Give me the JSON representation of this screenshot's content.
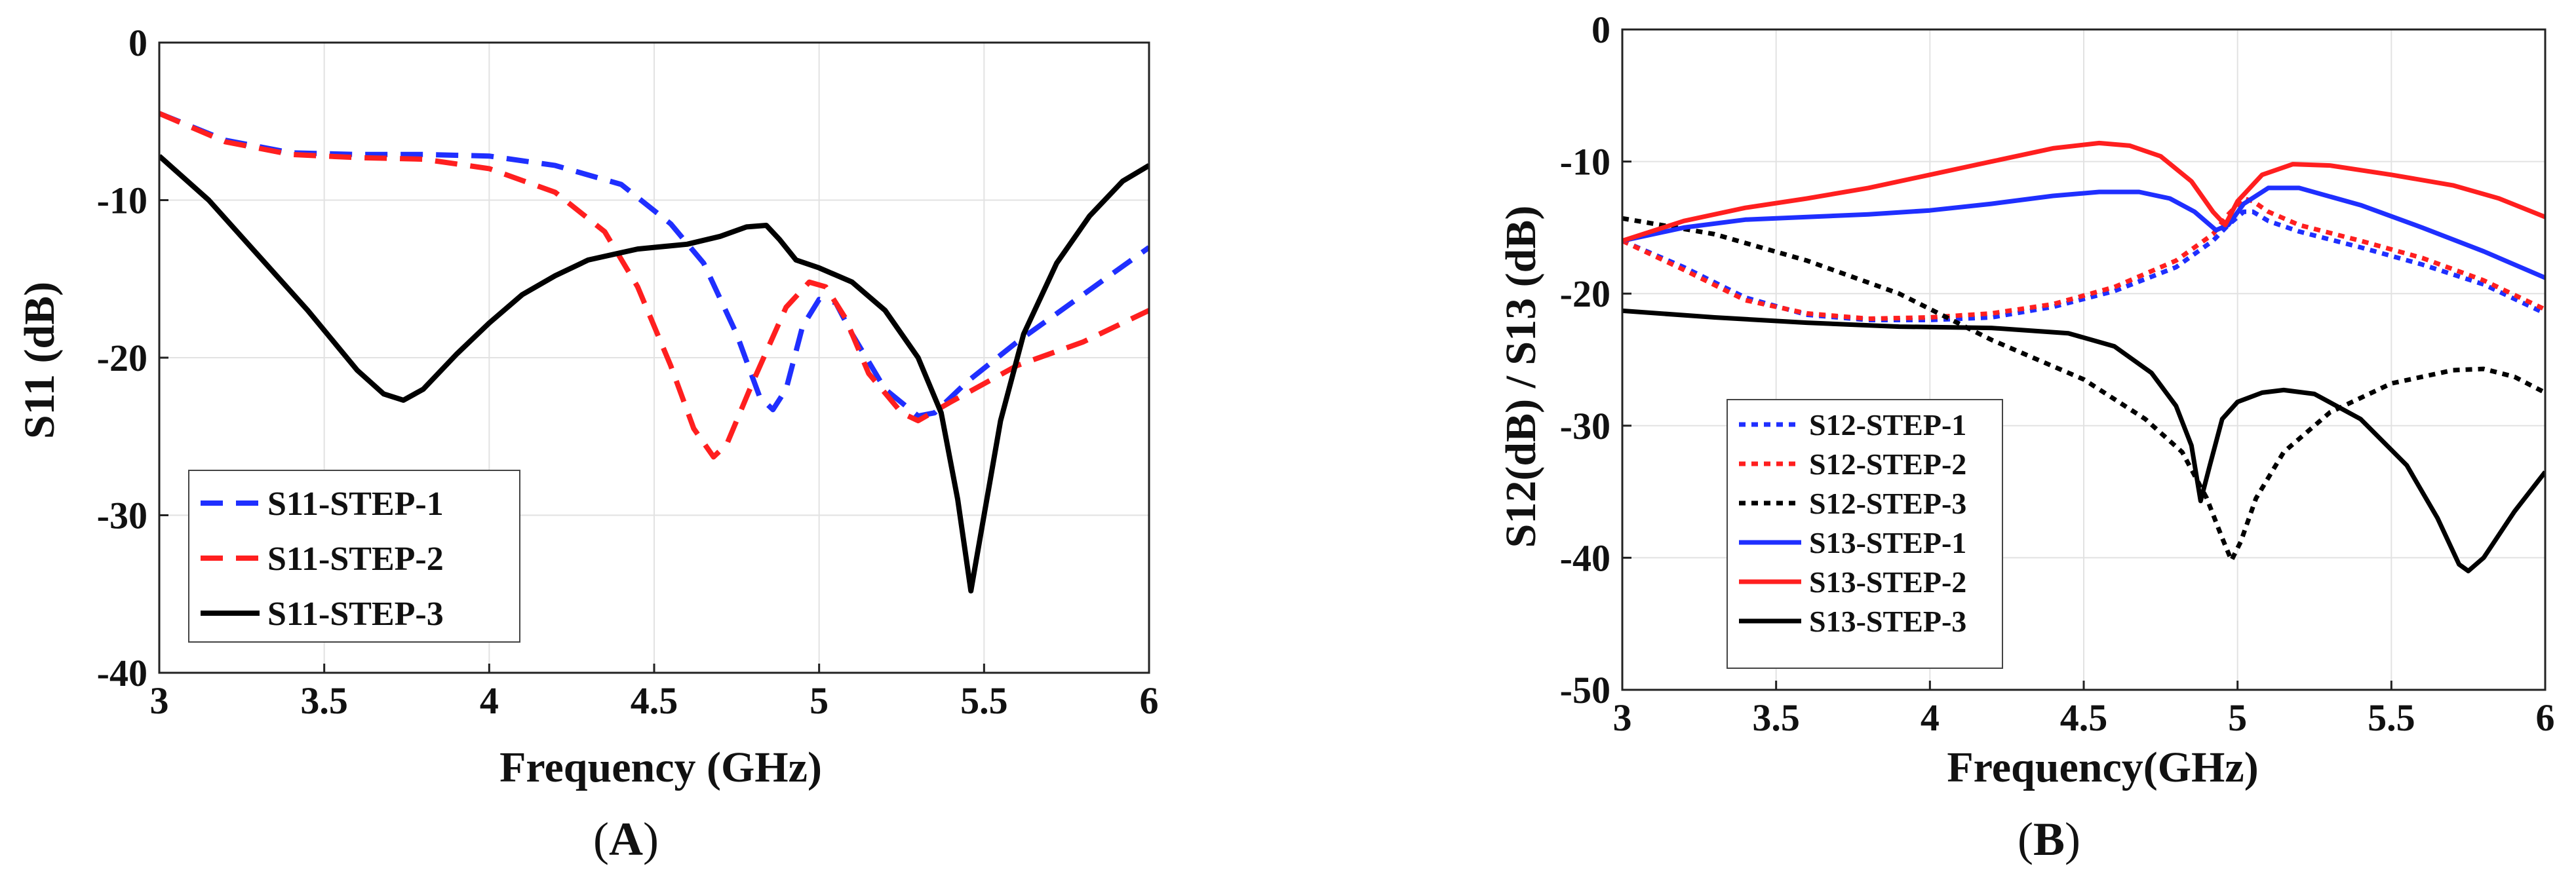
{
  "chart_data": [
    {
      "type": "line",
      "panel_label": "A",
      "xlabel": "Frequency (GHz)",
      "ylabel": "S11 (dB)",
      "xlim": [
        3,
        6
      ],
      "ylim": [
        -40,
        0
      ],
      "xticks": [
        3,
        3.5,
        4,
        4.5,
        5,
        5.5,
        6
      ],
      "xtick_labels": [
        "3",
        "3.5",
        "4",
        "4.5",
        "5",
        "5.5",
        "6"
      ],
      "yticks": [
        0,
        -10,
        -20,
        -30,
        -40
      ],
      "ytick_labels": [
        "0",
        "-10",
        "-20",
        "-30",
        "-40"
      ],
      "grid": true,
      "legend_position": "bottom-left",
      "series": [
        {
          "name": "S11-STEP-1",
          "color": "#1f2fff",
          "style": "dashed",
          "points": [
            [
              3,
              -4.5
            ],
            [
              3.2,
              -6.2
            ],
            [
              3.4,
              -7.0
            ],
            [
              3.6,
              -7.1
            ],
            [
              3.8,
              -7.1
            ],
            [
              4.0,
              -7.2
            ],
            [
              4.2,
              -7.8
            ],
            [
              4.4,
              -9.0
            ],
            [
              4.55,
              -11.5
            ],
            [
              4.65,
              -14.0
            ],
            [
              4.75,
              -18.5
            ],
            [
              4.82,
              -22.5
            ],
            [
              4.86,
              -23.3
            ],
            [
              4.9,
              -22.0
            ],
            [
              4.95,
              -18.0
            ],
            [
              5.0,
              -16.3
            ],
            [
              5.05,
              -16.5
            ],
            [
              5.1,
              -18.5
            ],
            [
              5.2,
              -22.0
            ],
            [
              5.3,
              -23.7
            ],
            [
              5.35,
              -23.5
            ],
            [
              5.45,
              -21.5
            ],
            [
              5.6,
              -19.0
            ],
            [
              5.8,
              -16.0
            ],
            [
              6.0,
              -13.0
            ]
          ]
        },
        {
          "name": "S11-STEP-2",
          "color": "#ff1f1f",
          "style": "dashed",
          "points": [
            [
              3,
              -4.5
            ],
            [
              3.2,
              -6.3
            ],
            [
              3.4,
              -7.1
            ],
            [
              3.6,
              -7.3
            ],
            [
              3.8,
              -7.4
            ],
            [
              4.0,
              -8.0
            ],
            [
              4.2,
              -9.5
            ],
            [
              4.35,
              -12.0
            ],
            [
              4.45,
              -15.5
            ],
            [
              4.55,
              -20.5
            ],
            [
              4.62,
              -24.5
            ],
            [
              4.68,
              -26.3
            ],
            [
              4.72,
              -25.5
            ],
            [
              4.8,
              -21.5
            ],
            [
              4.9,
              -16.8
            ],
            [
              4.97,
              -15.2
            ],
            [
              5.02,
              -15.5
            ],
            [
              5.08,
              -17.5
            ],
            [
              5.15,
              -21.0
            ],
            [
              5.25,
              -23.5
            ],
            [
              5.3,
              -24.0
            ],
            [
              5.4,
              -22.8
            ],
            [
              5.6,
              -20.5
            ],
            [
              5.8,
              -19.0
            ],
            [
              6.0,
              -17.0
            ]
          ]
        },
        {
          "name": "S11-STEP-3",
          "color": "#000000",
          "style": "solid",
          "points": [
            [
              3,
              -7.2
            ],
            [
              3.15,
              -10.0
            ],
            [
              3.3,
              -13.5
            ],
            [
              3.45,
              -17.0
            ],
            [
              3.6,
              -20.8
            ],
            [
              3.68,
              -22.3
            ],
            [
              3.74,
              -22.7
            ],
            [
              3.8,
              -22.0
            ],
            [
              3.9,
              -19.8
            ],
            [
              4.0,
              -17.8
            ],
            [
              4.1,
              -16.0
            ],
            [
              4.2,
              -14.8
            ],
            [
              4.3,
              -13.8
            ],
            [
              4.45,
              -13.1
            ],
            [
              4.6,
              -12.8
            ],
            [
              4.7,
              -12.3
            ],
            [
              4.78,
              -11.7
            ],
            [
              4.84,
              -11.6
            ],
            [
              4.88,
              -12.5
            ],
            [
              4.93,
              -13.8
            ],
            [
              5.0,
              -14.3
            ],
            [
              5.1,
              -15.2
            ],
            [
              5.2,
              -17.0
            ],
            [
              5.3,
              -20.0
            ],
            [
              5.37,
              -23.5
            ],
            [
              5.42,
              -29.0
            ],
            [
              5.46,
              -34.8
            ],
            [
              5.5,
              -30.0
            ],
            [
              5.55,
              -24.0
            ],
            [
              5.62,
              -18.5
            ],
            [
              5.72,
              -14.0
            ],
            [
              5.82,
              -11.0
            ],
            [
              5.92,
              -8.8
            ],
            [
              6.0,
              -7.8
            ]
          ]
        }
      ]
    },
    {
      "type": "line",
      "panel_label": "B",
      "xlabel": "Frequency(GHz)",
      "ylabel": "S12(dB) / S13 (dB)",
      "xlim": [
        3,
        6
      ],
      "ylim": [
        -50,
        0
      ],
      "xticks": [
        3,
        3.5,
        4,
        4.5,
        5,
        5.5,
        6
      ],
      "xtick_labels": [
        "3",
        "3.5",
        "4",
        "4.5",
        "5",
        "5.5",
        "6"
      ],
      "yticks": [
        0,
        -10,
        -20,
        -30,
        -40,
        -50
      ],
      "ytick_labels": [
        "0",
        "-10",
        "-20",
        "-30",
        "-40",
        "-50"
      ],
      "grid": true,
      "legend_position": "bottom-left",
      "series": [
        {
          "name": "S12-STEP-1",
          "color": "#1f2fff",
          "style": "dotted",
          "points": [
            [
              3,
              -16.0
            ],
            [
              3.2,
              -18.0
            ],
            [
              3.4,
              -20.3
            ],
            [
              3.6,
              -21.6
            ],
            [
              3.8,
              -22.0
            ],
            [
              4.0,
              -22.0
            ],
            [
              4.2,
              -21.8
            ],
            [
              4.4,
              -21.0
            ],
            [
              4.6,
              -19.8
            ],
            [
              4.8,
              -18.0
            ],
            [
              4.92,
              -16.0
            ],
            [
              4.97,
              -14.8
            ],
            [
              5.02,
              -13.8
            ],
            [
              5.05,
              -13.8
            ],
            [
              5.1,
              -14.5
            ],
            [
              5.2,
              -15.3
            ],
            [
              5.4,
              -16.5
            ],
            [
              5.6,
              -17.8
            ],
            [
              5.8,
              -19.3
            ],
            [
              6.0,
              -21.5
            ]
          ]
        },
        {
          "name": "S12-STEP-2",
          "color": "#ff1f1f",
          "style": "dotted",
          "points": [
            [
              3,
              -16.0
            ],
            [
              3.2,
              -18.2
            ],
            [
              3.4,
              -20.5
            ],
            [
              3.6,
              -21.5
            ],
            [
              3.8,
              -21.9
            ],
            [
              4.0,
              -21.8
            ],
            [
              4.2,
              -21.5
            ],
            [
              4.4,
              -20.8
            ],
            [
              4.6,
              -19.5
            ],
            [
              4.8,
              -17.5
            ],
            [
              4.92,
              -15.5
            ],
            [
              4.97,
              -14.0
            ],
            [
              5.02,
              -12.8
            ],
            [
              5.05,
              -13.0
            ],
            [
              5.1,
              -13.8
            ],
            [
              5.2,
              -14.8
            ],
            [
              5.4,
              -16.0
            ],
            [
              5.6,
              -17.3
            ],
            [
              5.8,
              -19.0
            ],
            [
              6.0,
              -21.2
            ]
          ]
        },
        {
          "name": "S12-STEP-3",
          "color": "#000000",
          "style": "dotted",
          "points": [
            [
              3,
              -14.3
            ],
            [
              3.3,
              -15.5
            ],
            [
              3.6,
              -17.5
            ],
            [
              3.9,
              -20.0
            ],
            [
              4.2,
              -23.5
            ],
            [
              4.5,
              -26.5
            ],
            [
              4.7,
              -29.5
            ],
            [
              4.82,
              -32.0
            ],
            [
              4.9,
              -35.5
            ],
            [
              4.95,
              -38.5
            ],
            [
              4.98,
              -40.2
            ],
            [
              5.01,
              -38.8
            ],
            [
              5.06,
              -35.5
            ],
            [
              5.15,
              -32.0
            ],
            [
              5.3,
              -29.0
            ],
            [
              5.5,
              -26.8
            ],
            [
              5.7,
              -25.8
            ],
            [
              5.8,
              -25.7
            ],
            [
              5.9,
              -26.3
            ],
            [
              6.0,
              -27.5
            ]
          ]
        },
        {
          "name": "S13-STEP-1",
          "color": "#1f2fff",
          "style": "solid",
          "points": [
            [
              3,
              -16.0
            ],
            [
              3.2,
              -15.0
            ],
            [
              3.4,
              -14.4
            ],
            [
              3.6,
              -14.2
            ],
            [
              3.8,
              -14.0
            ],
            [
              4.0,
              -13.7
            ],
            [
              4.2,
              -13.2
            ],
            [
              4.4,
              -12.6
            ],
            [
              4.55,
              -12.3
            ],
            [
              4.68,
              -12.3
            ],
            [
              4.78,
              -12.8
            ],
            [
              4.86,
              -13.8
            ],
            [
              4.93,
              -15.2
            ],
            [
              4.97,
              -14.8
            ],
            [
              5.02,
              -13.2
            ],
            [
              5.1,
              -12.0
            ],
            [
              5.2,
              -12.0
            ],
            [
              5.4,
              -13.3
            ],
            [
              5.6,
              -15.0
            ],
            [
              5.8,
              -16.8
            ],
            [
              6.0,
              -18.8
            ]
          ]
        },
        {
          "name": "S13-STEP-2",
          "color": "#ff1f1f",
          "style": "solid",
          "points": [
            [
              3,
              -16.0
            ],
            [
              3.2,
              -14.5
            ],
            [
              3.4,
              -13.5
            ],
            [
              3.6,
              -12.8
            ],
            [
              3.8,
              -12.0
            ],
            [
              4.0,
              -11.0
            ],
            [
              4.2,
              -10.0
            ],
            [
              4.4,
              -9.0
            ],
            [
              4.55,
              -8.6
            ],
            [
              4.65,
              -8.8
            ],
            [
              4.75,
              -9.6
            ],
            [
              4.85,
              -11.5
            ],
            [
              4.92,
              -13.8
            ],
            [
              4.96,
              -14.8
            ],
            [
              5.0,
              -13.0
            ],
            [
              5.08,
              -11.0
            ],
            [
              5.18,
              -10.2
            ],
            [
              5.3,
              -10.3
            ],
            [
              5.5,
              -11.0
            ],
            [
              5.7,
              -11.8
            ],
            [
              5.85,
              -12.8
            ],
            [
              6.0,
              -14.2
            ]
          ]
        },
        {
          "name": "S13-STEP-3",
          "color": "#000000",
          "style": "solid",
          "points": [
            [
              3,
              -21.3
            ],
            [
              3.3,
              -21.8
            ],
            [
              3.6,
              -22.2
            ],
            [
              3.9,
              -22.5
            ],
            [
              4.2,
              -22.6
            ],
            [
              4.45,
              -23.0
            ],
            [
              4.6,
              -24.0
            ],
            [
              4.72,
              -26.0
            ],
            [
              4.8,
              -28.5
            ],
            [
              4.85,
              -31.5
            ],
            [
              4.88,
              -35.7
            ],
            [
              4.91,
              -33.0
            ],
            [
              4.95,
              -29.5
            ],
            [
              5.0,
              -28.2
            ],
            [
              5.08,
              -27.5
            ],
            [
              5.15,
              -27.3
            ],
            [
              5.25,
              -27.6
            ],
            [
              5.4,
              -29.5
            ],
            [
              5.55,
              -33.0
            ],
            [
              5.65,
              -37.0
            ],
            [
              5.72,
              -40.5
            ],
            [
              5.75,
              -41.0
            ],
            [
              5.8,
              -40.0
            ],
            [
              5.9,
              -36.5
            ],
            [
              6.0,
              -33.5
            ]
          ]
        }
      ]
    }
  ]
}
